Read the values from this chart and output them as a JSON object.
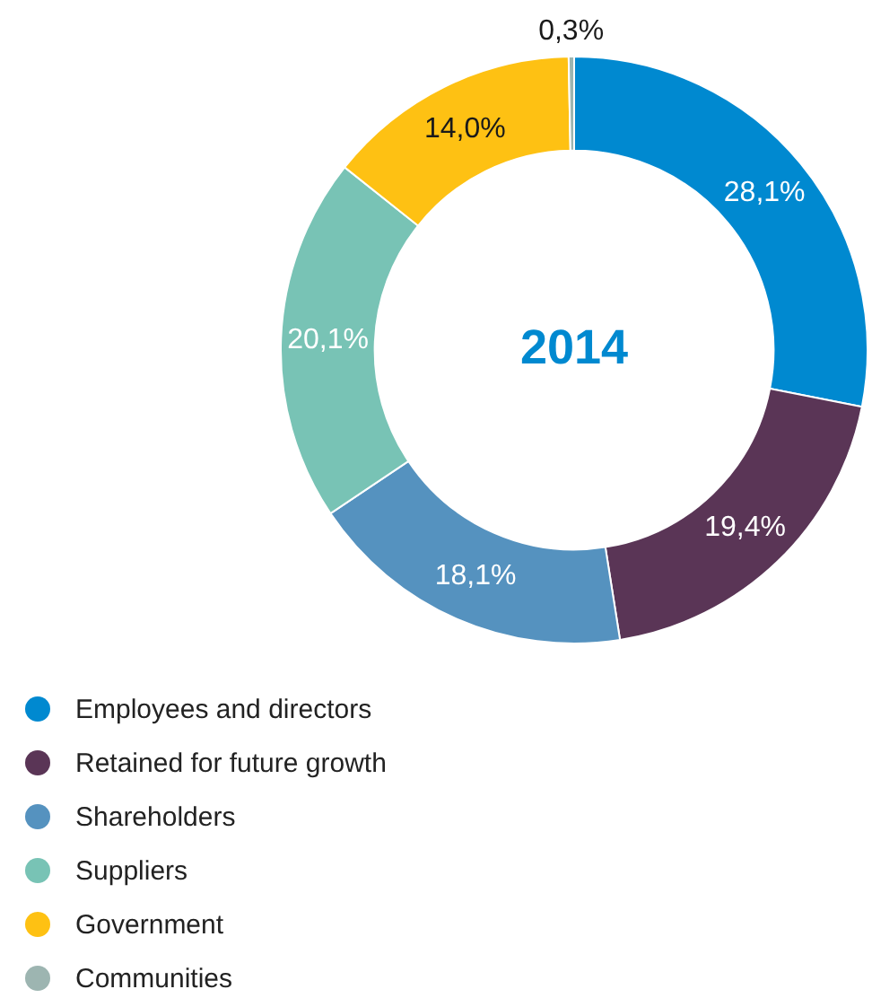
{
  "chart_data": {
    "type": "donut",
    "title": "2014",
    "categories": [
      "Employees and directors",
      "Retained for future growth",
      "Shareholders",
      "Suppliers",
      "Government",
      "Communities"
    ],
    "values": [
      28.1,
      19.4,
      18.1,
      20.1,
      14.0,
      0.3
    ],
    "colors": [
      "#0089d0",
      "#5a3556",
      "#5592bf",
      "#78c3b5",
      "#fec113",
      "#9db5b1"
    ],
    "value_labels": [
      "28,1%",
      "19,4%",
      "18,1%",
      "20,1%",
      "14,0%",
      "0,3%"
    ],
    "legend": "bottom left"
  }
}
